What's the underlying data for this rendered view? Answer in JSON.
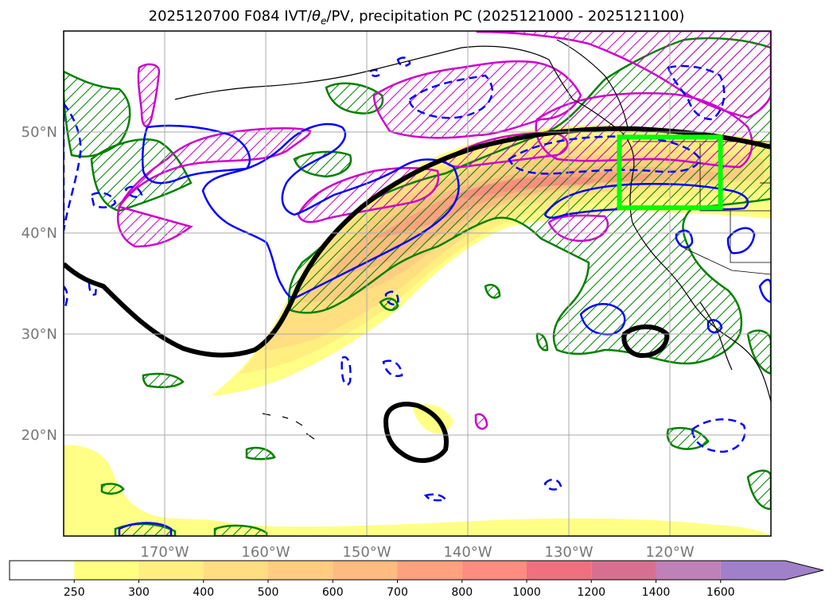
{
  "title": {
    "prefix": "2025120700 F084 IVT/",
    "theta": "θ",
    "theta_sub": "e",
    "suffix": "/PV, precipitation PC (2025121000 - 2025121100)"
  },
  "map": {
    "lon_range": [
      -180,
      -110
    ],
    "lat_range": [
      10,
      60
    ],
    "lat_ticks": [
      {
        "value": 20,
        "label": "20°N"
      },
      {
        "value": 30,
        "label": "30°N"
      },
      {
        "value": 40,
        "label": "40°N"
      },
      {
        "value": 50,
        "label": "50°N"
      }
    ],
    "lon_ticks": [
      {
        "value": -170,
        "label": "170°W"
      },
      {
        "value": -160,
        "label": "160°W"
      },
      {
        "value": -150,
        "label": "150°W"
      },
      {
        "value": -140,
        "label": "140°W"
      },
      {
        "value": -130,
        "label": "130°W"
      },
      {
        "value": -120,
        "label": "120°W"
      }
    ],
    "grid": true,
    "highlight_box": {
      "lon": [
        -125,
        -115
      ],
      "lat": [
        42.5,
        49.5
      ],
      "color": "#00ff00"
    }
  },
  "colorbar": {
    "levels": [
      "250",
      "300",
      "400",
      "500",
      "600",
      "700",
      "800",
      "1000",
      "1200",
      "1400",
      "1600"
    ],
    "colors": [
      "#ffff80",
      "#ffee80",
      "#ffdd80",
      "#ffcc80",
      "#ffbb80",
      "#ffa080",
      "#ff8c80",
      "#f07080",
      "#d77090",
      "#c080b8",
      "#a080c8"
    ],
    "extend": "max"
  },
  "legend_colors": {
    "ivt_fill": "#ffdd80",
    "pv_line": "#0000ff",
    "theta_line": "#cc00cc",
    "precip_line": "#008000",
    "jet_line": "#000000"
  }
}
